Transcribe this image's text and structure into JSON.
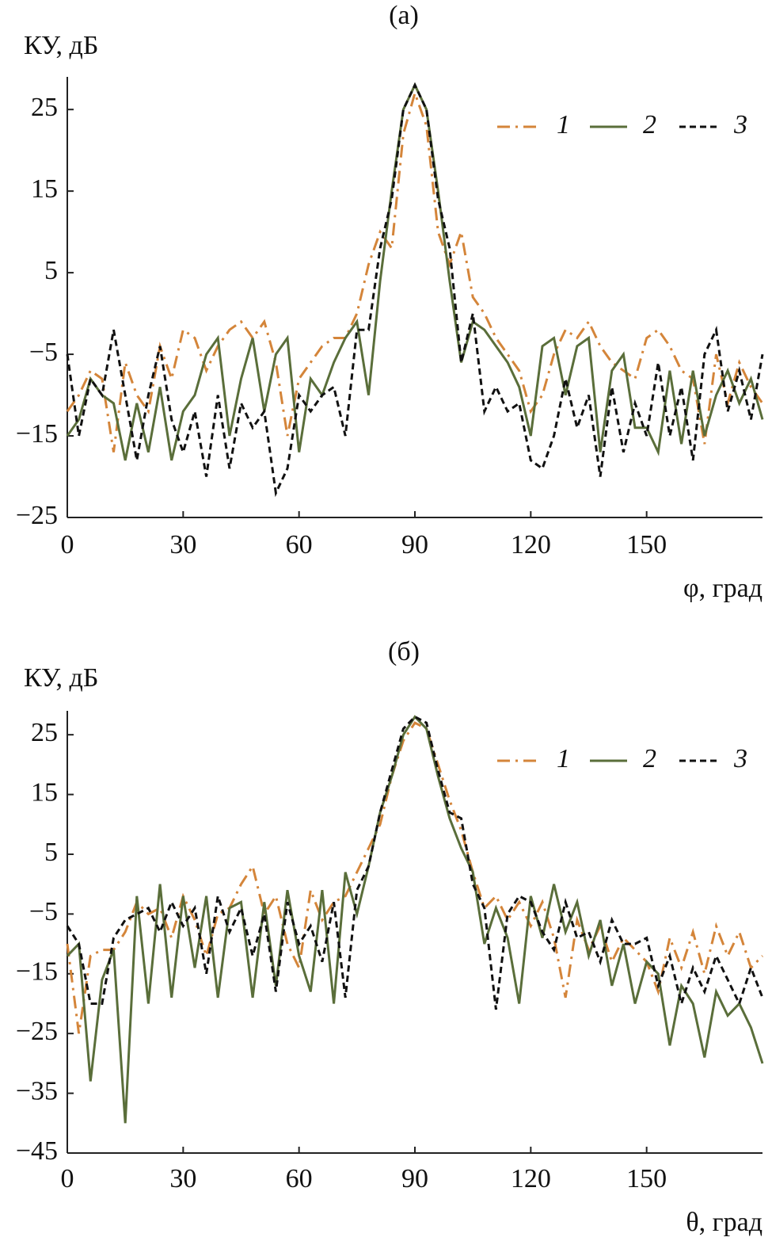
{
  "chart_data": [
    {
      "type": "line",
      "title": "(а)",
      "y_label": "КУ, дБ",
      "x_label": "φ, град",
      "xlim": [
        0,
        180
      ],
      "xticks": [
        0,
        30,
        60,
        90,
        120,
        150
      ],
      "ylim": [
        -25,
        29
      ],
      "yticks": [
        {
          "value": -25,
          "label": "−25"
        },
        {
          "value": -15,
          "label": "−15"
        },
        {
          "value": -5,
          "label": "−5"
        },
        5,
        15,
        25
      ],
      "legend": "top-right",
      "x": [
        0,
        3,
        6,
        9,
        12,
        15,
        18,
        21,
        24,
        27,
        30,
        33,
        36,
        39,
        42,
        45,
        48,
        51,
        54,
        57,
        60,
        63,
        66,
        69,
        72,
        75,
        78,
        81,
        84,
        87,
        90,
        93,
        96,
        99,
        102,
        105,
        108,
        111,
        114,
        117,
        120,
        123,
        126,
        129,
        132,
        135,
        138,
        141,
        144,
        147,
        150,
        153,
        156,
        159,
        162,
        165,
        168,
        171,
        174,
        177,
        180
      ],
      "series": [
        {
          "name": "1",
          "color": "#d4853a",
          "line_style": "dash-dot",
          "values": [
            -12,
            -10,
            -7,
            -8,
            -17,
            -6,
            -10,
            -12,
            -4,
            -8,
            -2,
            -3,
            -7,
            -4,
            -2,
            -1,
            -3,
            -1,
            -6,
            -15,
            -8,
            -6,
            -4,
            -3,
            -3,
            0,
            6,
            10,
            8,
            22,
            27,
            23,
            10,
            6,
            10,
            2,
            0,
            -3,
            -5,
            -7,
            -12,
            -10,
            -5,
            -2,
            -3,
            -1,
            -4,
            -6,
            -7,
            -8,
            -3,
            -2,
            -4,
            -7,
            -8,
            -16,
            -5,
            -11,
            -6,
            -9,
            -11
          ]
        },
        {
          "name": "2",
          "color": "#5a6e3a",
          "line_style": "solid",
          "values": [
            -15,
            -13,
            -8,
            -10,
            -11,
            -18,
            -11,
            -17,
            -9,
            -18,
            -12,
            -10,
            -5,
            -3,
            -15,
            -8,
            -3,
            -12,
            -5,
            -3,
            -17,
            -8,
            -10,
            -6,
            -3,
            -1,
            -10,
            4,
            15,
            25,
            28,
            25,
            15,
            4,
            -6,
            -1,
            -2,
            -4,
            -6,
            -9,
            -15,
            -4,
            -3,
            -10,
            -4,
            -3,
            -17,
            -7,
            -5,
            -14,
            -14,
            -17,
            -7,
            -16,
            -7,
            -15,
            -10,
            -7,
            -11,
            -8,
            -13
          ]
        },
        {
          "name": "3",
          "color": "#111111",
          "line_style": "dashed",
          "values": [
            -5,
            -15,
            -8,
            -10,
            -2,
            -10,
            -18,
            -10,
            -4,
            -13,
            -17,
            -12,
            -20,
            -10,
            -19,
            -11,
            -14,
            -12,
            -22,
            -19,
            -10,
            -12,
            -10,
            -9,
            -15,
            -2,
            -2,
            8,
            14,
            25,
            28,
            25,
            14,
            8,
            -6,
            0,
            -12,
            -9,
            -12,
            -11,
            -18,
            -19,
            -15,
            -8,
            -14,
            -10,
            -20,
            -9,
            -17,
            -11,
            -15,
            -6,
            -15,
            -9,
            -18,
            -5,
            -2,
            -12,
            -7,
            -13,
            -5
          ]
        }
      ]
    },
    {
      "type": "line",
      "title": "(б)",
      "y_label": "КУ, дБ",
      "x_label": "θ, град",
      "xlim": [
        0,
        180
      ],
      "xticks": [
        0,
        30,
        60,
        90,
        120,
        150
      ],
      "ylim": [
        -45,
        29
      ],
      "yticks": [
        {
          "value": -45,
          "label": "−45"
        },
        {
          "value": -35,
          "label": "−35"
        },
        {
          "value": -25,
          "label": "−25"
        },
        {
          "value": -15,
          "label": "−15"
        },
        {
          "value": -5,
          "label": "−5"
        },
        5,
        15,
        25
      ],
      "legend": "top-right",
      "x": [
        0,
        3,
        6,
        9,
        12,
        15,
        18,
        21,
        24,
        27,
        30,
        33,
        36,
        39,
        42,
        45,
        48,
        51,
        54,
        57,
        60,
        63,
        66,
        69,
        72,
        75,
        78,
        81,
        84,
        87,
        90,
        93,
        96,
        99,
        102,
        105,
        108,
        111,
        114,
        117,
        120,
        123,
        126,
        129,
        132,
        135,
        138,
        141,
        144,
        147,
        150,
        153,
        156,
        159,
        162,
        165,
        168,
        171,
        174,
        177,
        180
      ],
      "series": [
        {
          "name": "1",
          "color": "#d4853a",
          "line_style": "dash-dot",
          "values": [
            -10,
            -25,
            -12,
            -11,
            -11,
            -8,
            -3,
            -5,
            -4,
            -9,
            -2,
            -6,
            -12,
            -5,
            -4,
            0,
            3,
            -5,
            -2,
            -10,
            -14,
            -1,
            -6,
            -3,
            -2,
            2,
            6,
            10,
            18,
            24,
            27,
            26,
            20,
            14,
            9,
            2,
            -4,
            -2,
            -6,
            -3,
            -7,
            -3,
            -9,
            -19,
            -6,
            -11,
            -7,
            -13,
            -9,
            -11,
            -13,
            -18,
            -9,
            -14,
            -8,
            -15,
            -7,
            -12,
            -8,
            -14,
            -12
          ]
        },
        {
          "name": "2",
          "color": "#5a6e3a",
          "line_style": "solid",
          "values": [
            -12,
            -10,
            -33,
            -16,
            -11,
            -40,
            -2,
            -20,
            0,
            -19,
            -2,
            -14,
            -2,
            -19,
            -4,
            -3,
            -19,
            -3,
            -17,
            -1,
            -12,
            -18,
            -1,
            -20,
            2,
            -5,
            3,
            12,
            18,
            25,
            28,
            26,
            18,
            11,
            6,
            2,
            -10,
            -4,
            -9,
            -20,
            -2,
            -9,
            0,
            -8,
            -3,
            -12,
            -6,
            -17,
            -10,
            -20,
            -13,
            -15,
            -27,
            -17,
            -20,
            -29,
            -18,
            -22,
            -20,
            -24,
            -30
          ]
        },
        {
          "name": "3",
          "color": "#111111",
          "line_style": "dashed",
          "values": [
            -7,
            -10,
            -20,
            -20,
            -9,
            -6,
            -5,
            -4,
            -8,
            -3,
            -7,
            -4,
            -15,
            -2,
            -8,
            -4,
            -12,
            -5,
            -18,
            -3,
            -10,
            -7,
            -13,
            -3,
            -19,
            -1,
            3,
            12,
            19,
            26,
            28,
            27,
            19,
            12,
            11,
            0,
            -4,
            -21,
            -5,
            -2,
            -3,
            -8,
            -11,
            -3,
            -9,
            -8,
            -13,
            -6,
            -10,
            -10,
            -9,
            -17,
            -12,
            -20,
            -14,
            -18,
            -12,
            -16,
            -20,
            -14,
            -19
          ]
        }
      ]
    }
  ]
}
